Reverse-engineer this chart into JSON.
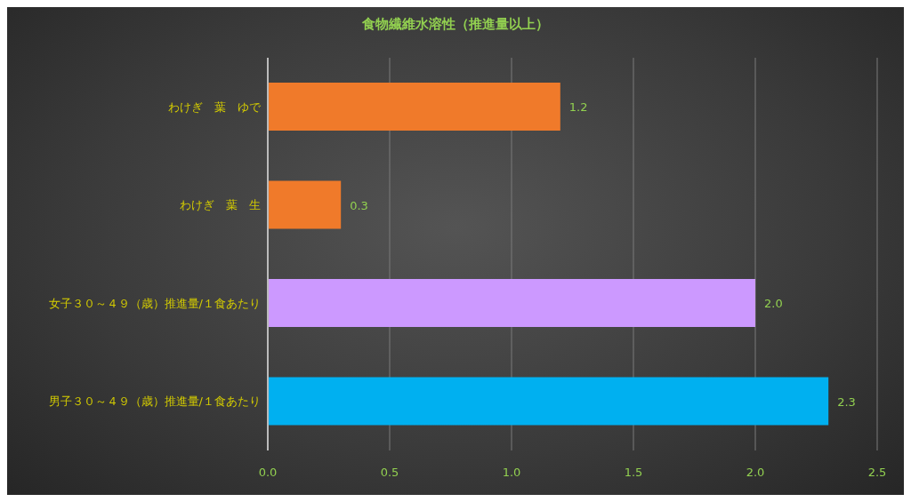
{
  "chart_data": {
    "type": "bar",
    "orientation": "horizontal",
    "title": "食物繊維水溶性（推進量以上）",
    "categories": [
      "わけぎ　葉　ゆで",
      "わけぎ　葉　生",
      "女子３０～４９（歳）推進量/１食あたり",
      "男子３０～４９（歳）推進量/１食あたり"
    ],
    "values": [
      1.2,
      0.3,
      2.0,
      2.3
    ],
    "colors": [
      "#f07a2a",
      "#f07a2a",
      "#cc99ff",
      "#00b0f0"
    ],
    "value_labels": [
      "1.2",
      "0.3",
      "2.0",
      "2.3"
    ],
    "xlim": [
      0,
      2.5
    ],
    "xticks": [
      {
        "value": 0,
        "label": "0.0"
      },
      {
        "value": 0.5,
        "label": "0.5"
      },
      {
        "value": 1,
        "label": "1.0"
      },
      {
        "value": 1.5,
        "label": "1.5"
      },
      {
        "value": 2,
        "label": "2.0"
      },
      {
        "value": 2.5,
        "label": "2.5"
      }
    ],
    "grid": "x"
  }
}
